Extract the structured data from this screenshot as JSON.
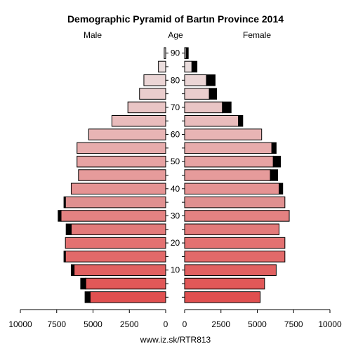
{
  "chart_data": {
    "type": "bar",
    "orientation": "horizontal-population-pyramid",
    "title": "Demographic Pyramid of Bartın Province 2014",
    "left_label": "Male",
    "center_label": "Age",
    "right_label": "Female",
    "footer": "www.iz.sk/RTR813",
    "age_groups": [
      "0-4",
      "5-9",
      "10-14",
      "15-19",
      "20-24",
      "25-29",
      "30-34",
      "35-39",
      "40-44",
      "45-49",
      "50-54",
      "55-59",
      "60-64",
      "65-69",
      "70-74",
      "75-79",
      "80-84",
      "85-89",
      "90+"
    ],
    "age_ticks": [
      {
        "age": 10,
        "label": "10"
      },
      {
        "age": 20,
        "label": "20"
      },
      {
        "age": 30,
        "label": "30"
      },
      {
        "age": 40,
        "label": "40"
      },
      {
        "age": 50,
        "label": "50"
      },
      {
        "age": 60,
        "label": "60"
      },
      {
        "age": 70,
        "label": "70"
      },
      {
        "age": 80,
        "label": "80"
      },
      {
        "age": 90,
        "label": "90"
      }
    ],
    "x_ticks": [
      {
        "value": 10000,
        "label": "10000"
      },
      {
        "value": 7500,
        "label": "7500"
      },
      {
        "value": 5000,
        "label": "5000"
      },
      {
        "value": 2500,
        "label": "2500"
      },
      {
        "value": 0,
        "label": "0"
      }
    ],
    "x_ticks_right": [
      {
        "value": 0,
        "label": "0"
      },
      {
        "value": 2500,
        "label": "2500"
      },
      {
        "value": 5000,
        "label": "5000"
      },
      {
        "value": 7500,
        "label": "7500"
      },
      {
        "value": 10000,
        "label": "10000"
      }
    ],
    "xlim": [
      0,
      10000
    ],
    "series": [
      {
        "name": "Male",
        "values": [
          5200,
          5500,
          6300,
          6900,
          6900,
          6500,
          7200,
          6900,
          6500,
          6000,
          6100,
          6100,
          5300,
          3700,
          2600,
          1800,
          1500,
          500,
          100
        ],
        "excess": [
          350,
          350,
          200,
          100,
          0,
          350,
          200,
          100,
          0,
          0,
          0,
          0,
          0,
          0,
          0,
          0,
          0,
          0,
          0
        ]
      },
      {
        "name": "Female",
        "values": [
          5200,
          5500,
          6300,
          6900,
          6900,
          6500,
          7200,
          6900,
          6500,
          5900,
          6100,
          6000,
          5300,
          3700,
          2600,
          1700,
          1500,
          500,
          100
        ],
        "excess": [
          0,
          0,
          0,
          0,
          0,
          0,
          0,
          0,
          250,
          500,
          500,
          300,
          0,
          300,
          600,
          500,
          600,
          350,
          150
        ]
      }
    ],
    "colors": {
      "young": "#e05050",
      "old": "#ece6e6",
      "excess": "#000000",
      "highlight_age_group": "35-39",
      "highlight_fill": "#e09090"
    },
    "grid": false,
    "legend": "none"
  }
}
